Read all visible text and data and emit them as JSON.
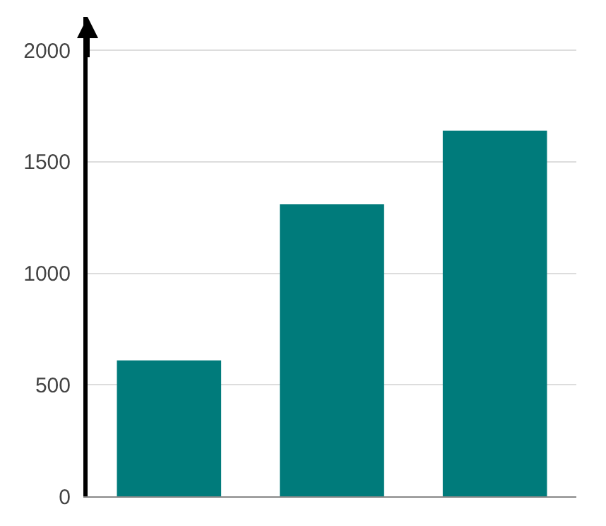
{
  "chart_data": {
    "type": "bar",
    "categories": [
      null,
      null,
      null
    ],
    "values": [
      610,
      1310,
      1640
    ],
    "color": "#007b7b",
    "ylim": [
      0,
      2150
    ],
    "yticks": [
      0,
      500,
      1000,
      1500,
      2000
    ],
    "grid": "y",
    "legend": false
  }
}
